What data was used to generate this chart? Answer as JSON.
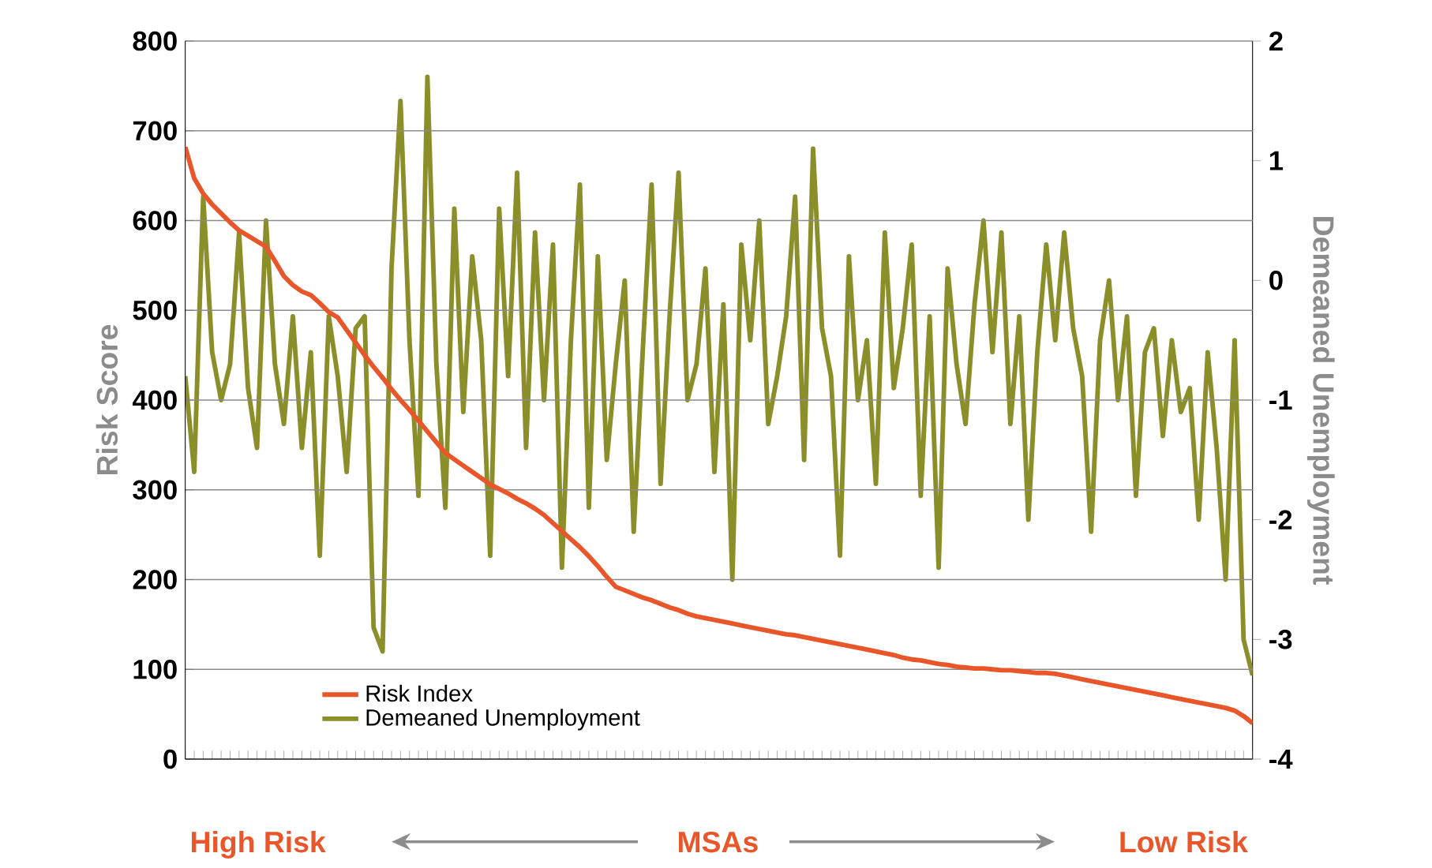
{
  "chart_data": {
    "type": "line",
    "xlabel": "MSAs",
    "ylabel": "Risk Score",
    "y2label": "Demeaned Unemployment",
    "annotations": [
      "High Risk",
      "Low Risk"
    ],
    "categories": [
      null,
      null,
      null,
      null,
      null,
      null,
      null,
      null,
      null,
      null,
      null,
      null,
      null,
      null,
      null,
      null,
      null,
      null,
      null,
      null,
      null,
      null,
      null,
      null,
      null,
      null,
      null,
      null,
      null,
      null,
      null,
      null,
      null,
      null,
      null,
      null,
      null,
      null,
      null,
      null,
      null,
      null,
      null,
      null,
      null,
      null,
      null,
      null,
      null,
      null,
      null,
      null,
      null,
      null,
      null,
      null,
      null,
      null,
      null,
      null,
      null,
      null,
      null,
      null,
      null,
      null,
      null,
      null,
      null,
      null,
      null,
      null,
      null,
      null,
      null,
      null,
      null,
      null,
      null,
      null,
      null,
      null,
      null,
      null,
      null,
      null,
      null,
      null,
      null,
      null,
      null,
      null,
      null,
      null,
      null,
      null,
      null,
      null,
      null,
      null,
      null,
      null,
      null,
      null,
      null,
      null,
      null,
      null,
      null,
      null,
      null,
      null,
      null,
      null,
      null,
      null,
      null,
      null,
      null,
      null
    ],
    "series": [
      {
        "name": "Risk Index",
        "color": "#e8562a",
        "values": [
          682,
          647,
          630,
          618,
          608,
          598,
          589,
          583,
          577,
          571,
          555,
          538,
          528,
          521,
          517,
          508,
          498,
          492,
          478,
          464,
          450,
          437,
          425,
          412,
          400,
          389,
          377,
          365,
          353,
          341,
          334,
          327,
          320,
          313,
          306,
          301,
          296,
          290,
          285,
          279,
          272,
          263,
          254,
          245,
          236,
          226,
          215,
          203,
          192,
          188,
          184,
          180,
          177,
          173,
          169,
          166,
          162,
          159,
          157,
          155,
          153,
          151,
          149,
          147,
          145,
          143,
          141,
          139,
          138,
          136,
          134,
          132,
          130,
          128,
          126,
          124,
          122,
          120,
          118,
          116,
          113,
          111,
          110,
          108,
          106,
          105,
          103,
          102,
          101,
          101,
          100,
          99,
          99,
          98,
          97,
          96,
          96,
          95,
          93,
          91,
          89,
          87,
          85,
          83,
          81,
          79,
          77,
          75,
          73,
          71,
          69,
          67,
          65,
          63,
          61,
          59,
          57,
          54,
          48,
          40
        ]
      },
      {
        "name": "Demeaned Unemployment",
        "axis": "y2",
        "color": "#8a8f2a",
        "values": [
          -0.8,
          -1.6,
          0.7,
          -0.6,
          -1.0,
          -0.7,
          0.4,
          -0.9,
          -1.4,
          0.5,
          -0.7,
          -1.2,
          -0.3,
          -1.4,
          -0.6,
          -2.3,
          -0.3,
          -0.8,
          -1.6,
          -0.4,
          -0.3,
          -2.9,
          -3.1,
          0.1,
          1.5,
          -0.5,
          -1.8,
          1.7,
          -0.7,
          -1.9,
          0.6,
          -1.1,
          0.2,
          -0.5,
          -2.3,
          0.6,
          -0.8,
          0.9,
          -1.4,
          0.4,
          -1.0,
          0.3,
          -2.4,
          -0.5,
          0.8,
          -1.9,
          0.2,
          -1.5,
          -0.7,
          0.0,
          -2.1,
          -0.6,
          0.8,
          -1.7,
          -0.3,
          0.9,
          -1.0,
          -0.7,
          0.1,
          -1.6,
          -0.2,
          -2.5,
          0.3,
          -0.5,
          0.5,
          -1.2,
          -0.8,
          -0.3,
          0.7,
          -1.5,
          1.1,
          -0.4,
          -0.8,
          -2.3,
          0.2,
          -1.0,
          -0.5,
          -1.7,
          0.4,
          -0.9,
          -0.4,
          0.3,
          -1.8,
          -0.3,
          -2.4,
          0.1,
          -0.7,
          -1.2,
          -0.2,
          0.5,
          -0.6,
          0.4,
          -1.2,
          -0.3,
          -2.0,
          -0.6,
          0.3,
          -0.5,
          0.4,
          -0.4,
          -0.8,
          -2.1,
          -0.5,
          0.0,
          -1.0,
          -0.3,
          -1.8,
          -0.6,
          -0.4,
          -1.3,
          -0.5,
          -1.1,
          -0.9,
          -2.0,
          -0.6,
          -1.4,
          -2.5,
          -0.5,
          -3.0,
          -3.3
        ]
      }
    ],
    "ylim": [
      0,
      800
    ],
    "yticks": [
      0,
      100,
      200,
      300,
      400,
      500,
      600,
      700,
      800
    ],
    "y2lim": [
      -4,
      2
    ],
    "y2ticks": [
      -4,
      -3,
      -2,
      -1,
      0,
      1,
      2
    ],
    "grid": "y",
    "legend": "bottom left"
  }
}
